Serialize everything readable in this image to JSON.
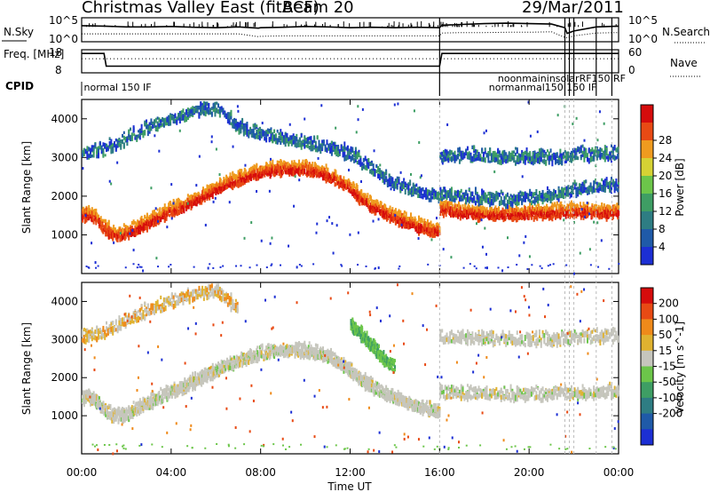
{
  "header": {
    "title": "Christmas Valley East (fitACF)",
    "beam": "Beam 20",
    "date": "29/Mar/2011"
  },
  "chart_data": [
    {
      "type": "line",
      "name": "noise-panel",
      "left_label": "N.Sky",
      "right_label": "N.Search",
      "left_ticks": [
        "10^5",
        "10^0"
      ],
      "right_ticks": [
        "10^5",
        "10^0"
      ],
      "x": [
        0,
        1,
        2,
        3,
        4,
        5,
        6,
        7,
        7.9,
        8,
        9,
        10,
        11,
        12,
        13,
        14,
        15,
        16,
        16.1,
        17,
        18,
        19,
        20,
        21,
        21.6,
        21.7,
        22,
        23,
        24
      ],
      "series": [
        {
          "key": "sky",
          "style": "solid",
          "values": [
            3.5,
            3.4,
            3.2,
            3.2,
            3.3,
            3.1,
            3.0,
            3.2,
            2.9,
            3.0,
            3.1,
            3.3,
            3.2,
            3.0,
            3.1,
            3.0,
            3.1,
            3.0,
            3.6,
            3.8,
            4.0,
            4.1,
            4.0,
            3.9,
            3.0,
            1.6,
            2.2,
            3.2,
            3.4
          ]
        },
        {
          "key": "search",
          "style": "dotted",
          "values": [
            1.5,
            1.5,
            1.5,
            1.5,
            1.5,
            1.5,
            1.5,
            1.5,
            0.8,
            0.9,
            1.0,
            1.0,
            1.0,
            1.0,
            1.0,
            1.0,
            1.0,
            1.0,
            1.7,
            1.8,
            1.8,
            1.9,
            1.9,
            2.0,
            0.6,
            0.5,
            1.0,
            1.7,
            1.8
          ]
        }
      ],
      "ylim": [
        0,
        5
      ]
    },
    {
      "type": "line",
      "name": "frequency-panel",
      "left_label": "Freq. [MHz]",
      "right_label": "Nave",
      "left_ticks": [
        "18",
        "8"
      ],
      "right_ticks": [
        "60",
        "0"
      ],
      "x": [
        0,
        1,
        1.1,
        16,
        16.1,
        24
      ],
      "series": [
        {
          "key": "freq",
          "style": "solid",
          "values": [
            17.0,
            17.0,
            10.5,
            10.5,
            17.0,
            17.0
          ]
        },
        {
          "key": "nave",
          "style": "dotted",
          "values": [
            38,
            38,
            38,
            38,
            38,
            38
          ]
        }
      ],
      "ylim_left": [
        8,
        18
      ],
      "ylim_right": [
        0,
        60
      ]
    },
    {
      "type": "heatmap",
      "name": "power-panel",
      "ylabel": "Slant Range [km]",
      "xlim": [
        0,
        24
      ],
      "ylim": [
        0,
        4500
      ],
      "yticks": [
        1000,
        2000,
        3000,
        4000
      ],
      "colorbar": {
        "label": "Power [dB]",
        "ticks": [
          "4",
          "8",
          "12",
          "16",
          "20",
          "24",
          "28"
        ],
        "colors": [
          "#1c2fd4",
          "#1f5aa8",
          "#2e7d83",
          "#3e9e64",
          "#6cc64a",
          "#d6d234",
          "#ef9b1f",
          "#e84a14",
          "#d60c0c"
        ]
      },
      "bands": [
        {
          "x": [
            0.0,
            0.5,
            1.0,
            1.5,
            2.0,
            2.5,
            3.0,
            3.5,
            4.0,
            4.5,
            5.0,
            5.5,
            6.0,
            6.5,
            7.0,
            7.5,
            8.0,
            8.5,
            9.0,
            9.5,
            10.0,
            10.5,
            11.0,
            11.5,
            12.0,
            12.5,
            13.0,
            13.5,
            14.0,
            14.5,
            15.0,
            15.5,
            16.0
          ],
          "y": [
            1550,
            1500,
            1200,
            1000,
            1050,
            1200,
            1350,
            1500,
            1650,
            1750,
            1900,
            2050,
            2200,
            2350,
            2450,
            2550,
            2650,
            2700,
            2720,
            2720,
            2700,
            2650,
            2550,
            2400,
            2200,
            1950,
            1750,
            1600,
            1450,
            1350,
            1250,
            1150,
            1100
          ],
          "level": 28
        },
        {
          "x": [
            16.0,
            16.5,
            17.0,
            17.5,
            18.0,
            18.5,
            19.0,
            19.5,
            20.0,
            20.5,
            21.0,
            21.5,
            22.0,
            22.5,
            23.0,
            23.5,
            24.0
          ],
          "y": [
            1700,
            1650,
            1600,
            1580,
            1560,
            1550,
            1550,
            1560,
            1570,
            1580,
            1600,
            1620,
            1630,
            1620,
            1600,
            1600,
            1600
          ],
          "level": 24
        },
        {
          "x": [
            0.0,
            1.0,
            2.0,
            3.0,
            4.0,
            5.0,
            6.0,
            7.0,
            8.0,
            9.0,
            10.0,
            11.0,
            12.0,
            13.0,
            14.0,
            15.0,
            16.0
          ],
          "y": [
            3100,
            3200,
            3500,
            3800,
            4000,
            4200,
            4300,
            3800,
            3600,
            3500,
            3400,
            3300,
            3100,
            2700,
            2300,
            2100,
            2000
          ],
          "level": 8
        },
        {
          "x": [
            16.0,
            17.0,
            18.0,
            19.0,
            20.0,
            21.0,
            22.0,
            23.0,
            24.0
          ],
          "y": [
            3050,
            3050,
            3050,
            3000,
            3000,
            3000,
            3050,
            3100,
            3100
          ],
          "level": 12
        },
        {
          "x": [
            16.0,
            17.0,
            18.0,
            19.0,
            20.0,
            21.0,
            22.0,
            23.0,
            24.0
          ],
          "y": [
            2050,
            2000,
            1950,
            1900,
            1950,
            2050,
            2150,
            2250,
            2300
          ],
          "level": 12
        }
      ]
    },
    {
      "type": "heatmap",
      "name": "velocity-panel",
      "ylabel": "Slant Range [km]",
      "xlabel": "Time UT",
      "xlim": [
        0,
        24
      ],
      "ylim": [
        0,
        4500
      ],
      "yticks": [
        1000,
        2000,
        3000,
        4000
      ],
      "xticks": [
        "00:00",
        "04:00",
        "08:00",
        "12:00",
        "16:00",
        "20:00",
        "00:00"
      ],
      "colorbar": {
        "label": "Velocity [m s^-1]",
        "ticks": [
          "200",
          "100",
          "50",
          "15",
          "-15",
          "-50",
          "-100",
          "-200"
        ],
        "colors": [
          "#1c2fd4",
          "#1f5aa8",
          "#2e7d83",
          "#3e9e64",
          "#6cc64a",
          "#c6c6bd",
          "#e0b230",
          "#ef8a1a",
          "#e84a14",
          "#d60c0c"
        ]
      },
      "bands": [
        {
          "x": [
            0.0,
            0.5,
            1.0,
            1.5,
            2.0,
            2.5,
            3.0,
            3.5,
            4.0,
            4.5,
            5.0,
            5.5,
            6.0,
            6.5,
            7.0,
            7.5,
            8.0,
            8.5,
            9.0,
            9.5,
            10.0,
            10.5,
            11.0,
            11.5,
            12.0,
            12.5,
            13.0,
            13.5,
            14.0,
            14.5,
            15.0,
            15.5,
            16.0
          ],
          "y": [
            1500,
            1450,
            1150,
            1000,
            1050,
            1200,
            1350,
            1500,
            1650,
            1750,
            1900,
            2050,
            2200,
            2350,
            2450,
            2550,
            2650,
            2700,
            2720,
            2720,
            2700,
            2650,
            2550,
            2400,
            2200,
            1950,
            1750,
            1600,
            1450,
            1350,
            1250,
            1150,
            1100
          ],
          "level": 0
        },
        {
          "x": [
            12.0,
            12.5,
            13.0,
            13.5,
            14.0
          ],
          "y": [
            3400,
            3100,
            2800,
            2500,
            2200
          ],
          "level": 30
        },
        {
          "x": [
            16.0,
            17.0,
            18.0,
            19.0,
            20.0,
            21.0,
            22.0,
            23.0,
            24.0
          ],
          "y": [
            1650,
            1600,
            1580,
            1560,
            1560,
            1580,
            1600,
            1620,
            1620
          ],
          "level": 0
        },
        {
          "x": [
            16.0,
            17.0,
            18.0,
            19.0,
            20.0,
            21.0,
            22.0,
            23.0,
            24.0
          ],
          "y": [
            3050,
            3050,
            3050,
            3000,
            3000,
            3000,
            3050,
            3100,
            3100
          ],
          "level": 0
        },
        {
          "x": [
            0.0,
            1.0,
            2.0,
            3.0,
            4.0,
            5.0,
            6.0,
            7.0
          ],
          "y": [
            3100,
            3200,
            3500,
            3800,
            4000,
            4200,
            4300,
            3800
          ],
          "level": -30
        }
      ]
    }
  ],
  "cpid": {
    "label": "CPID",
    "entries": [
      {
        "text": "normal 150 IF",
        "t": 0.1,
        "row": 0
      },
      {
        "text": "noonmaininsolarRF150 RF",
        "t": 18.6,
        "row": -1
      },
      {
        "text": "normanmal150 150 IF",
        "t": 18.2,
        "row": 0
      }
    ],
    "vertical_markers": [
      16.0,
      21.6,
      21.8,
      22.0,
      23.0,
      23.7
    ]
  }
}
